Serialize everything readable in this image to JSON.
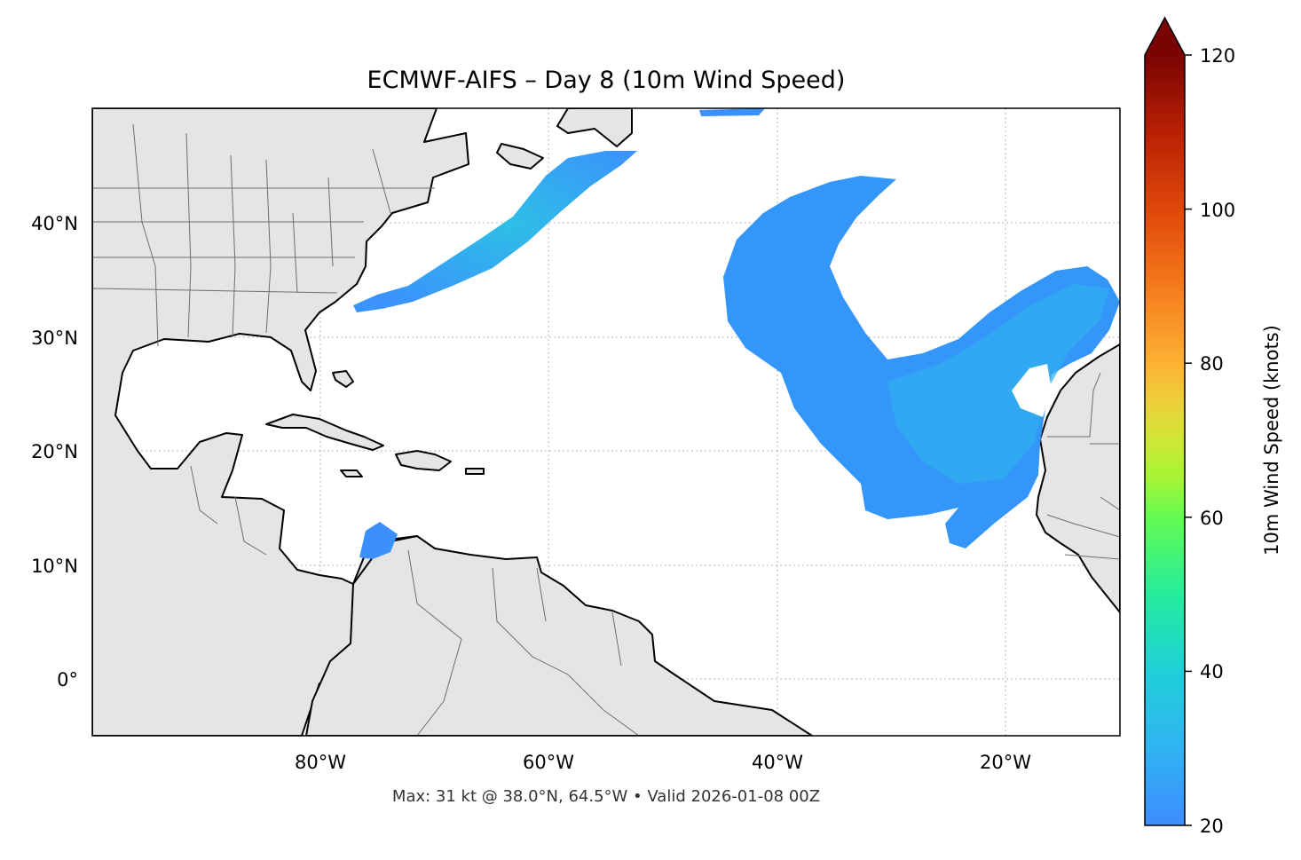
{
  "title": "ECMWF-AIFS – Day 8 (10m Wind Speed)",
  "footer": "Max: 31 kt @ 38.0°N, 64.5°W • Valid 2026-01-08 00Z",
  "map": {
    "lat_ticks": [
      "40°N",
      "30°N",
      "20°N",
      "10°N",
      "0°"
    ],
    "lon_ticks": [
      "80°W",
      "60°W",
      "40°W",
      "20°W"
    ],
    "extent": {
      "lon": [
        -100,
        -10
      ],
      "lat": [
        -5,
        50
      ]
    },
    "land_color": "#e5e5e5",
    "ocean_color": "#ffffff",
    "coast_color": "#000000",
    "border_color": "#6e6e6e",
    "gridlines": true
  },
  "colorbar": {
    "label": "10m Wind Speed (knots)",
    "ticks": [
      "20",
      "40",
      "60",
      "80",
      "100",
      "120"
    ],
    "range": [
      20,
      120
    ],
    "extend": "max",
    "colormap": "turbo",
    "over_color": "#7a0403"
  },
  "wind_field": {
    "units": "knots",
    "max_value": 31,
    "max_location": "38.0°N, 64.5°W"
  }
}
